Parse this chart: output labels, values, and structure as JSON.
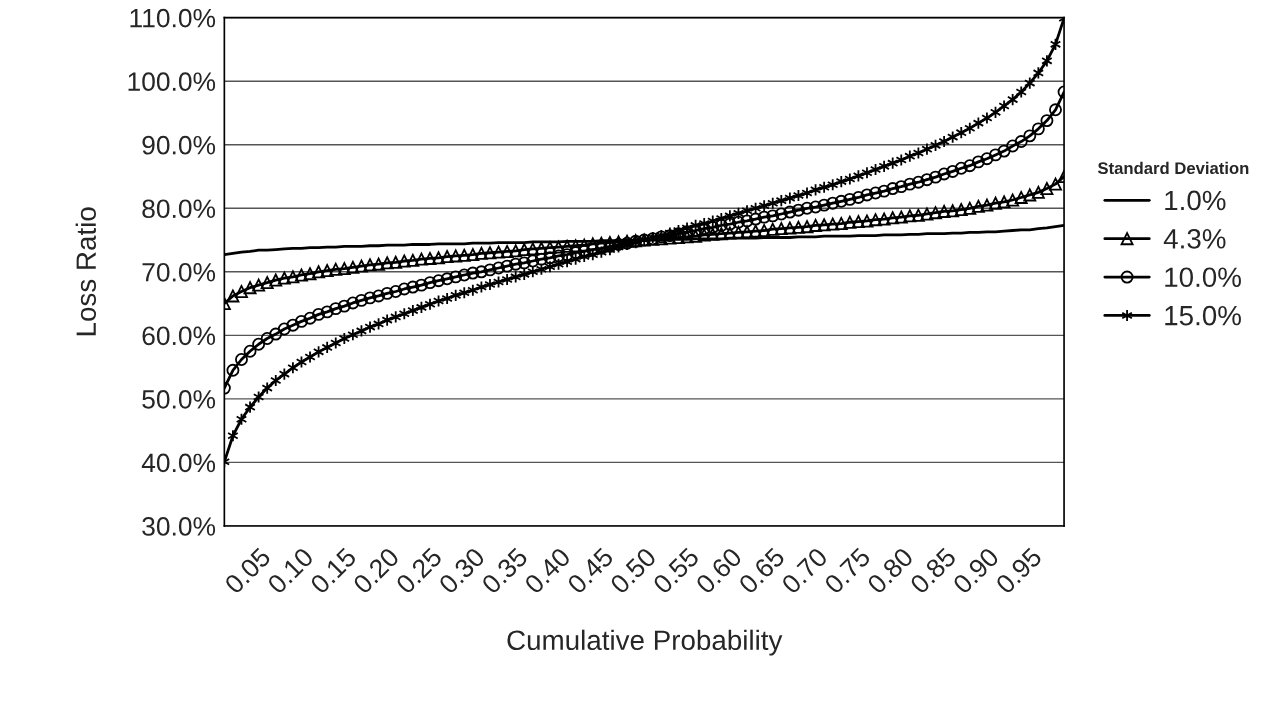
{
  "chart_data": {
    "type": "line",
    "xlabel": "Cumulative Probability",
    "ylabel": "Loss Ratio",
    "legend_title": "Standard Deviation",
    "x": [
      0.01,
      0.02,
      0.03,
      0.04,
      0.05,
      0.06,
      0.07,
      0.08,
      0.09,
      0.1,
      0.11,
      0.12,
      0.13,
      0.14,
      0.15,
      0.16,
      0.17,
      0.18,
      0.19,
      0.2,
      0.21,
      0.22,
      0.23,
      0.24,
      0.25,
      0.26,
      0.27,
      0.28,
      0.29,
      0.3,
      0.31,
      0.32,
      0.33,
      0.34,
      0.35,
      0.36,
      0.37,
      0.38,
      0.39,
      0.4,
      0.41,
      0.42,
      0.43,
      0.44,
      0.45,
      0.46,
      0.47,
      0.48,
      0.49,
      0.5,
      0.51,
      0.52,
      0.53,
      0.54,
      0.55,
      0.56,
      0.57,
      0.58,
      0.59,
      0.6,
      0.61,
      0.62,
      0.63,
      0.64,
      0.65,
      0.66,
      0.67,
      0.68,
      0.69,
      0.7,
      0.71,
      0.72,
      0.73,
      0.74,
      0.75,
      0.76,
      0.77,
      0.78,
      0.79,
      0.8,
      0.81,
      0.82,
      0.83,
      0.84,
      0.85,
      0.86,
      0.87,
      0.88,
      0.89,
      0.9,
      0.91,
      0.92,
      0.93,
      0.94,
      0.95,
      0.96,
      0.97,
      0.98,
      0.99
    ],
    "series": [
      {
        "name": "1.0%",
        "color": "#000000",
        "marker": "none",
        "values": [
          72.7,
          72.9,
          73.1,
          73.2,
          73.4,
          73.4,
          73.5,
          73.6,
          73.7,
          73.7,
          73.8,
          73.8,
          73.9,
          73.9,
          74.0,
          74.0,
          74.0,
          74.1,
          74.1,
          74.2,
          74.2,
          74.2,
          74.3,
          74.3,
          74.3,
          74.4,
          74.4,
          74.4,
          74.4,
          74.5,
          74.5,
          74.5,
          74.6,
          74.6,
          74.6,
          74.6,
          74.7,
          74.7,
          74.7,
          74.7,
          74.8,
          74.8,
          74.8,
          74.8,
          74.9,
          74.9,
          74.9,
          75.0,
          75.0,
          75.0,
          75.0,
          75.0,
          75.1,
          75.1,
          75.1,
          75.2,
          75.2,
          75.2,
          75.2,
          75.3,
          75.3,
          75.3,
          75.3,
          75.4,
          75.4,
          75.4,
          75.4,
          75.5,
          75.5,
          75.5,
          75.6,
          75.6,
          75.6,
          75.6,
          75.7,
          75.7,
          75.7,
          75.8,
          75.8,
          75.8,
          75.9,
          75.9,
          76.0,
          76.0,
          76.0,
          76.1,
          76.1,
          76.2,
          76.2,
          76.3,
          76.3,
          76.4,
          76.5,
          76.6,
          76.6,
          76.8,
          76.9,
          77.1,
          77.3
        ]
      },
      {
        "name": "4.3%",
        "color": "#000000",
        "marker": "triangle",
        "values": [
          65.0,
          66.2,
          66.9,
          67.5,
          67.9,
          68.3,
          68.7,
          69.0,
          69.2,
          69.5,
          69.7,
          70.0,
          70.2,
          70.4,
          70.5,
          70.7,
          70.9,
          71.1,
          71.2,
          71.4,
          71.5,
          71.7,
          71.8,
          72.0,
          72.1,
          72.2,
          72.4,
          72.5,
          72.6,
          72.7,
          72.9,
          73.0,
          73.1,
          73.2,
          73.3,
          73.5,
          73.6,
          73.7,
          73.8,
          73.9,
          74.0,
          74.1,
          74.2,
          74.4,
          74.5,
          74.6,
          74.7,
          74.8,
          74.9,
          75.0,
          75.1,
          75.2,
          75.3,
          75.4,
          75.5,
          75.6,
          75.8,
          75.9,
          76.0,
          76.1,
          76.2,
          76.3,
          76.4,
          76.5,
          76.7,
          76.8,
          76.9,
          77.0,
          77.1,
          77.3,
          77.4,
          77.5,
          77.6,
          77.8,
          77.9,
          78.0,
          78.2,
          78.3,
          78.5,
          78.6,
          78.8,
          78.9,
          79.1,
          79.3,
          79.5,
          79.6,
          79.8,
          80.0,
          80.3,
          80.5,
          80.8,
          81.0,
          81.3,
          81.7,
          82.1,
          82.5,
          83.1,
          83.8,
          85.0
        ]
      },
      {
        "name": "10.0%",
        "color": "#000000",
        "marker": "circle",
        "values": [
          51.7,
          54.5,
          56.2,
          57.5,
          58.6,
          59.5,
          60.2,
          61.0,
          61.6,
          62.2,
          62.7,
          63.3,
          63.7,
          64.2,
          64.6,
          65.1,
          65.5,
          65.9,
          66.2,
          66.6,
          66.9,
          67.3,
          67.6,
          67.9,
          68.3,
          68.6,
          68.9,
          69.2,
          69.5,
          69.8,
          70.0,
          70.3,
          70.6,
          70.9,
          71.2,
          71.4,
          71.7,
          72.0,
          72.2,
          72.5,
          72.7,
          73.0,
          73.2,
          73.5,
          73.7,
          74.0,
          74.3,
          74.5,
          74.8,
          75.0,
          75.2,
          75.5,
          75.7,
          76.0,
          76.3,
          76.5,
          76.8,
          77.0,
          77.3,
          77.5,
          77.8,
          78.0,
          78.3,
          78.6,
          78.8,
          79.1,
          79.4,
          79.7,
          80.0,
          80.2,
          80.5,
          80.8,
          81.1,
          81.4,
          81.7,
          82.1,
          82.4,
          82.7,
          83.1,
          83.4,
          83.8,
          84.1,
          84.5,
          84.9,
          85.4,
          85.8,
          86.3,
          86.7,
          87.3,
          87.8,
          88.4,
          89.0,
          89.8,
          90.5,
          91.4,
          92.5,
          93.8,
          95.5,
          98.3
        ]
      },
      {
        "name": "15.0%",
        "color": "#000000",
        "marker": "cross",
        "values": [
          40.1,
          44.2,
          46.8,
          48.7,
          50.3,
          51.7,
          52.9,
          53.9,
          54.9,
          55.8,
          56.6,
          57.4,
          58.1,
          58.8,
          59.5,
          60.1,
          60.7,
          61.3,
          61.8,
          62.4,
          62.9,
          63.4,
          63.9,
          64.4,
          64.9,
          65.4,
          65.8,
          66.3,
          66.7,
          67.1,
          67.6,
          68.0,
          68.4,
          68.8,
          69.2,
          69.6,
          70.0,
          70.4,
          70.8,
          71.2,
          71.6,
          72.0,
          72.4,
          72.7,
          73.1,
          73.5,
          73.9,
          74.3,
          74.6,
          75.0,
          75.4,
          75.7,
          76.1,
          76.5,
          76.9,
          77.3,
          77.6,
          78.0,
          78.4,
          78.8,
          79.2,
          79.6,
          80.0,
          80.4,
          80.8,
          81.2,
          81.6,
          82.0,
          82.4,
          82.9,
          83.3,
          83.7,
          84.2,
          84.6,
          85.1,
          85.6,
          86.1,
          86.6,
          87.1,
          87.6,
          88.2,
          88.7,
          89.3,
          89.9,
          90.5,
          91.2,
          91.9,
          92.6,
          93.4,
          94.2,
          95.1,
          96.1,
          97.1,
          98.3,
          99.7,
          101.3,
          103.2,
          105.8,
          109.9
        ]
      }
    ],
    "xlim": [
      0.01,
      0.99
    ],
    "xticks": [
      {
        "value": 0.05,
        "label": "0.05"
      },
      {
        "value": 0.1,
        "label": "0.10"
      },
      {
        "value": 0.15,
        "label": "0.15"
      },
      {
        "value": 0.2,
        "label": "0.20"
      },
      {
        "value": 0.25,
        "label": "0.25"
      },
      {
        "value": 0.3,
        "label": "0.30"
      },
      {
        "value": 0.35,
        "label": "0.35"
      },
      {
        "value": 0.4,
        "label": "0.40"
      },
      {
        "value": 0.45,
        "label": "0.45"
      },
      {
        "value": 0.5,
        "label": "0.50"
      },
      {
        "value": 0.55,
        "label": "0.55"
      },
      {
        "value": 0.6,
        "label": "0.60"
      },
      {
        "value": 0.65,
        "label": "0.65"
      },
      {
        "value": 0.7,
        "label": "0.70"
      },
      {
        "value": 0.75,
        "label": "0.75"
      },
      {
        "value": 0.8,
        "label": "0.80"
      },
      {
        "value": 0.85,
        "label": "0.85"
      },
      {
        "value": 0.9,
        "label": "0.90"
      },
      {
        "value": 0.95,
        "label": "0.95"
      }
    ],
    "ylim": [
      30,
      110
    ],
    "yticks": [
      {
        "value": 30,
        "label": "30.0%"
      },
      {
        "value": 40,
        "label": "40.0%"
      },
      {
        "value": 50,
        "label": "50.0%"
      },
      {
        "value": 60,
        "label": "60.0%"
      },
      {
        "value": 70,
        "label": "70.0%"
      },
      {
        "value": 80,
        "label": "80.0%"
      },
      {
        "value": 90,
        "label": "90.0%"
      },
      {
        "value": 100,
        "label": "100.0%"
      },
      {
        "value": 110,
        "label": "110.0%"
      }
    ],
    "grid": "y",
    "legend": "right",
    "line_style": "solid"
  }
}
